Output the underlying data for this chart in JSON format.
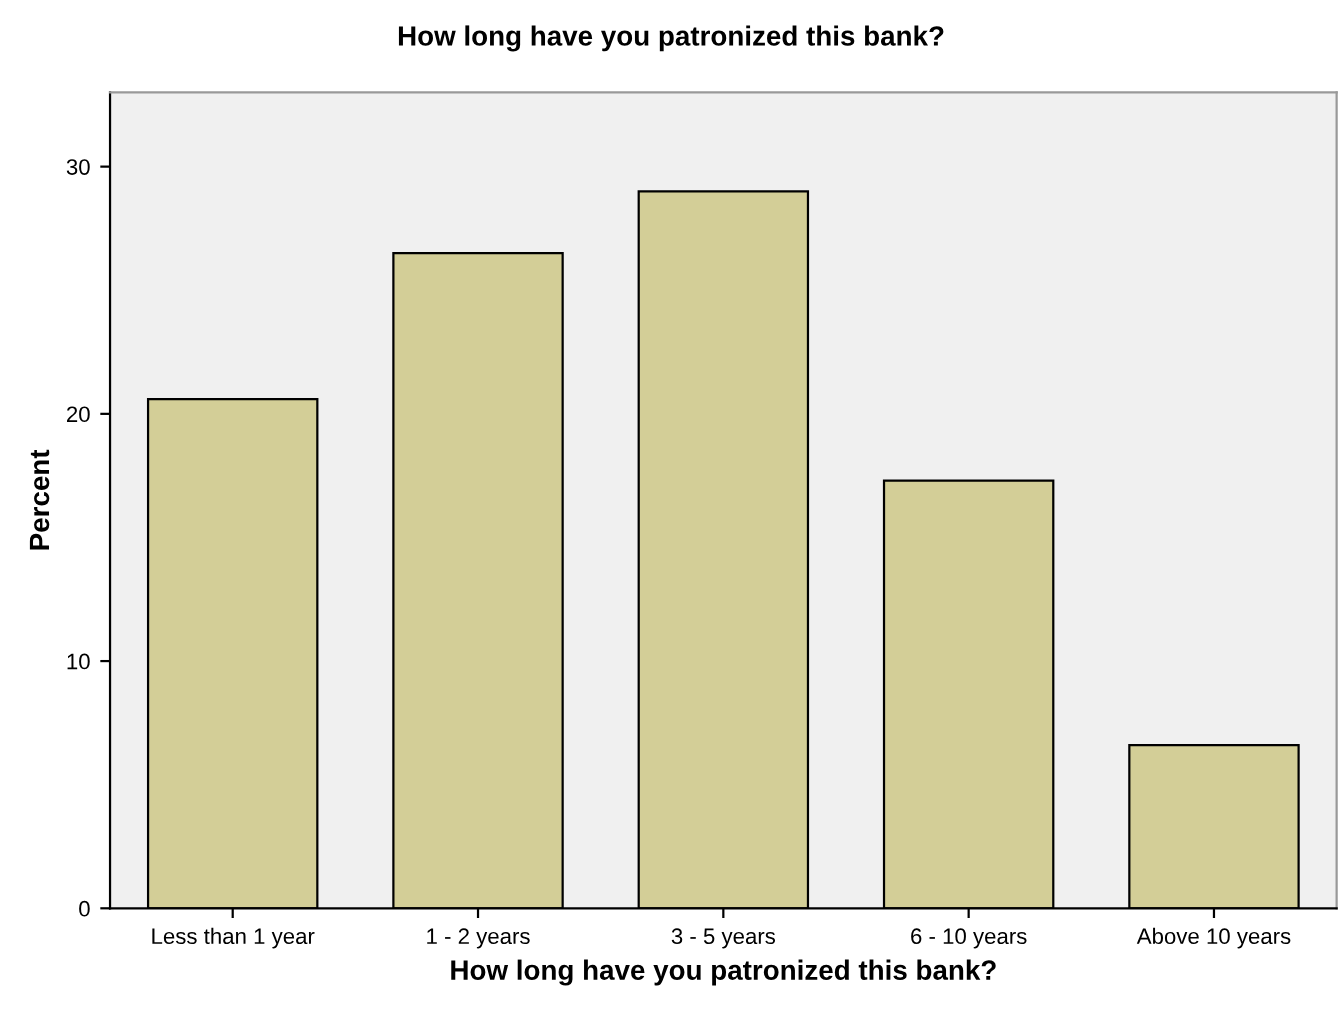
{
  "chart_data": {
    "type": "bar",
    "title": "How long have you patronized this bank?",
    "xlabel": "How long have you patronized this bank?",
    "ylabel": "Percent",
    "categories": [
      "Less than 1 year",
      "1 - 2 years",
      "3 - 5 years",
      "6 - 10 years",
      "Above 10 years"
    ],
    "values": [
      20.6,
      26.5,
      29.0,
      17.3,
      6.6
    ],
    "color": "#d3ce97",
    "ylim": [
      0,
      33
    ],
    "yticks": [
      0,
      10,
      20,
      30
    ],
    "grid": false,
    "legend": false
  }
}
